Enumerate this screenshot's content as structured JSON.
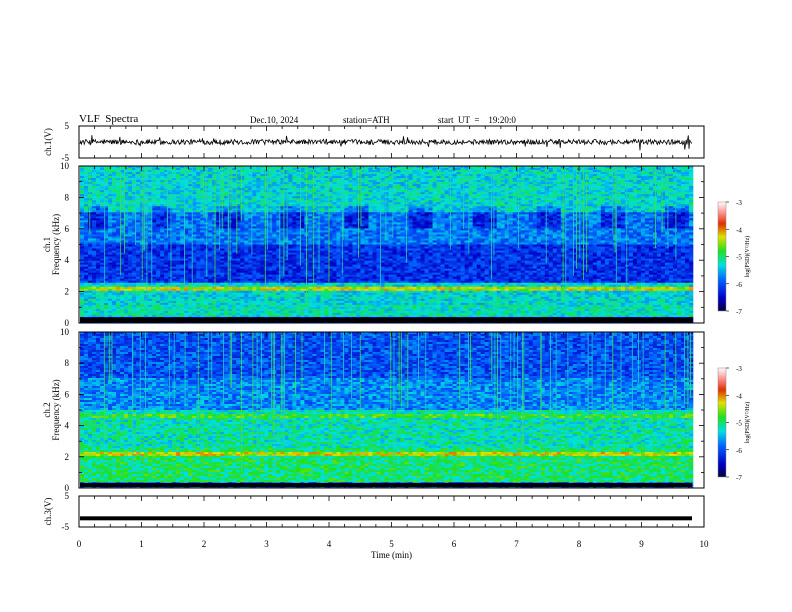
{
  "header": {
    "title": "VLF  Spectra",
    "date": "Dec.10, 2024",
    "station": "station=ATH",
    "start": "start  UT  =    19:20:0"
  },
  "chart_data": [
    {
      "type": "line",
      "ylabel": "ch.1(V)",
      "yticks": [
        "5",
        "-5"
      ],
      "ylim": [
        -5,
        5
      ],
      "description_values": "noisy waveform near 0 V with small spikes"
    },
    {
      "type": "heatmap",
      "ylabel": "ch.1\nFrequency (kHz)",
      "yticks": [
        "0",
        "2",
        "4",
        "6",
        "8",
        "10"
      ],
      "ylim": [
        0,
        10
      ],
      "colorbar": {
        "label": "log(PSD)(V²/Hz)",
        "ticks": [
          "-3",
          "-4",
          "-5",
          "-6",
          "-7"
        ],
        "range": [
          -7,
          -3
        ]
      }
    },
    {
      "type": "heatmap",
      "ylabel": "ch.2\nFrequency (kHz)",
      "yticks": [
        "0",
        "2",
        "4",
        "6",
        "8",
        "10"
      ],
      "ylim": [
        0,
        10
      ],
      "colorbar": {
        "label": "log(PSD)(V²/Hz)",
        "ticks": [
          "-3",
          "-4",
          "-5",
          "-6",
          "-7"
        ],
        "range": [
          -7,
          -3
        ]
      }
    },
    {
      "type": "line",
      "ylabel": "ch.3(V)",
      "yticks": [
        "5",
        "-5"
      ],
      "ylim": [
        -5,
        5
      ],
      "level": -2.2
    }
  ],
  "xaxis": {
    "label": "Time  (min)",
    "ticks": [
      "0",
      "1",
      "2",
      "3",
      "4",
      "5",
      "6",
      "7",
      "8",
      "9",
      "10"
    ],
    "xlim": [
      0,
      10
    ]
  }
}
